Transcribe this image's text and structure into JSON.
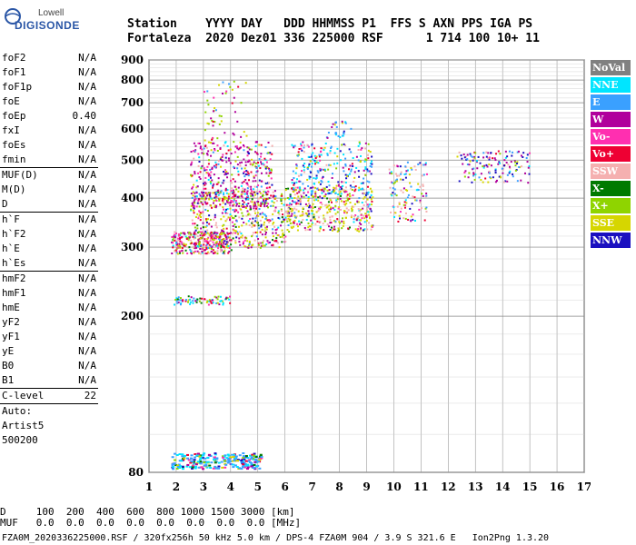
{
  "logo": {
    "line1": "Lowell",
    "line2": "DIGISONDE"
  },
  "header": {
    "row1": "Station    YYYY DAY   DDD HHMMSS P1  FFS S AXN PPS IGA PS",
    "row2": "Fortaleza  2020 Dez01 336 225000 RSF      1 714 100 10+ 11"
  },
  "params": [
    {
      "name": "foF2",
      "value": "N/A"
    },
    {
      "name": "foF1",
      "value": "N/A"
    },
    {
      "name": "foF1p",
      "value": "N/A"
    },
    {
      "name": "foE",
      "value": "N/A"
    },
    {
      "name": "foEp",
      "value": "0.40"
    },
    {
      "name": "fxI",
      "value": "N/A"
    },
    {
      "name": "foEs",
      "value": "N/A"
    },
    {
      "name": "fmin",
      "value": "N/A"
    },
    {
      "sep": true
    },
    {
      "name": "MUF(D)",
      "value": "N/A"
    },
    {
      "name": "M(D)",
      "value": "N/A"
    },
    {
      "name": "D",
      "value": "N/A"
    },
    {
      "sep": true
    },
    {
      "name": "h`F",
      "value": "N/A"
    },
    {
      "name": "h`F2",
      "value": "N/A"
    },
    {
      "name": "h`E",
      "value": "N/A"
    },
    {
      "name": "h`Es",
      "value": "N/A"
    },
    {
      "sep": true
    },
    {
      "name": "hmF2",
      "value": "N/A"
    },
    {
      "name": "hmF1",
      "value": "N/A"
    },
    {
      "name": "hmE",
      "value": "N/A"
    },
    {
      "name": "yF2",
      "value": "N/A"
    },
    {
      "name": "yF1",
      "value": "N/A"
    },
    {
      "name": "yE",
      "value": "N/A"
    },
    {
      "name": "B0",
      "value": "N/A"
    },
    {
      "name": "B1",
      "value": "N/A"
    },
    {
      "sep": true
    },
    {
      "name": "C-level",
      "value": "22"
    },
    {
      "sep": true
    },
    {
      "name": "Auto:",
      "value": ""
    },
    {
      "name": "Artist5",
      "value": ""
    },
    {
      "name": "500200",
      "value": ""
    }
  ],
  "legend": [
    {
      "label": "NoVal",
      "color": "#808080"
    },
    {
      "label": "NNE",
      "color": "#00e5ff"
    },
    {
      "label": "E",
      "color": "#3aa0ff"
    },
    {
      "label": "W",
      "color": "#b0009c"
    },
    {
      "label": "Vo-",
      "color": "#ff2fb0"
    },
    {
      "label": "Vo+",
      "color": "#ee0033"
    },
    {
      "label": "SSW",
      "color": "#f5b0b0"
    },
    {
      "label": "X-",
      "color": "#007a00"
    },
    {
      "label": "X+",
      "color": "#8fd400"
    },
    {
      "label": "SSE",
      "color": "#d6d600"
    },
    {
      "label": "NNW",
      "color": "#1a10c0"
    }
  ],
  "bottom": {
    "row1": "D     100  200  400  600  800 1000 1500 3000 [km]",
    "row2": "MUF   0.0  0.0  0.0  0.0  0.0  0.0  0.0  0.0 [MHz]"
  },
  "footer": "FZA0M_2020336225000.RSF / 320fx256h 50 kHz 5.0 km / DPS-4 FZA0M 904 / 3.9 S 321.6 E   Ion2Png 1.3.20",
  "chart_data": {
    "type": "scatter",
    "title": "",
    "xlabel": "",
    "ylabel": "",
    "xlim": [
      1,
      17
    ],
    "ylim": [
      80,
      900
    ],
    "x_ticks": [
      1,
      2,
      3,
      4,
      5,
      6,
      7,
      8,
      9,
      10,
      11,
      12,
      13,
      14,
      15,
      16,
      17
    ],
    "y_ticks": [
      80,
      200,
      300,
      400,
      500,
      600,
      700,
      800,
      900
    ],
    "yscale": "log",
    "grid": true,
    "legend_position": "right",
    "clusters": [
      {
        "series": "mixed",
        "x": [
          1.8,
          5.1
        ],
        "y": [
          82,
          90
        ],
        "note": "low-height echoes"
      },
      {
        "series": "mixed",
        "x": [
          1.9,
          4.0
        ],
        "y": [
          215,
          225
        ]
      },
      {
        "series": "mixed",
        "x": [
          1.8,
          9.2
        ],
        "y": [
          290,
          420
        ]
      },
      {
        "series": "mixed",
        "x": [
          2.5,
          9.0
        ],
        "y": [
          380,
          560
        ]
      },
      {
        "series": "mixed",
        "x": [
          10.0,
          11.2
        ],
        "y": [
          350,
          500
        ]
      },
      {
        "series": "mixed",
        "x": [
          12.3,
          15.0
        ],
        "y": [
          440,
          530
        ]
      }
    ]
  }
}
